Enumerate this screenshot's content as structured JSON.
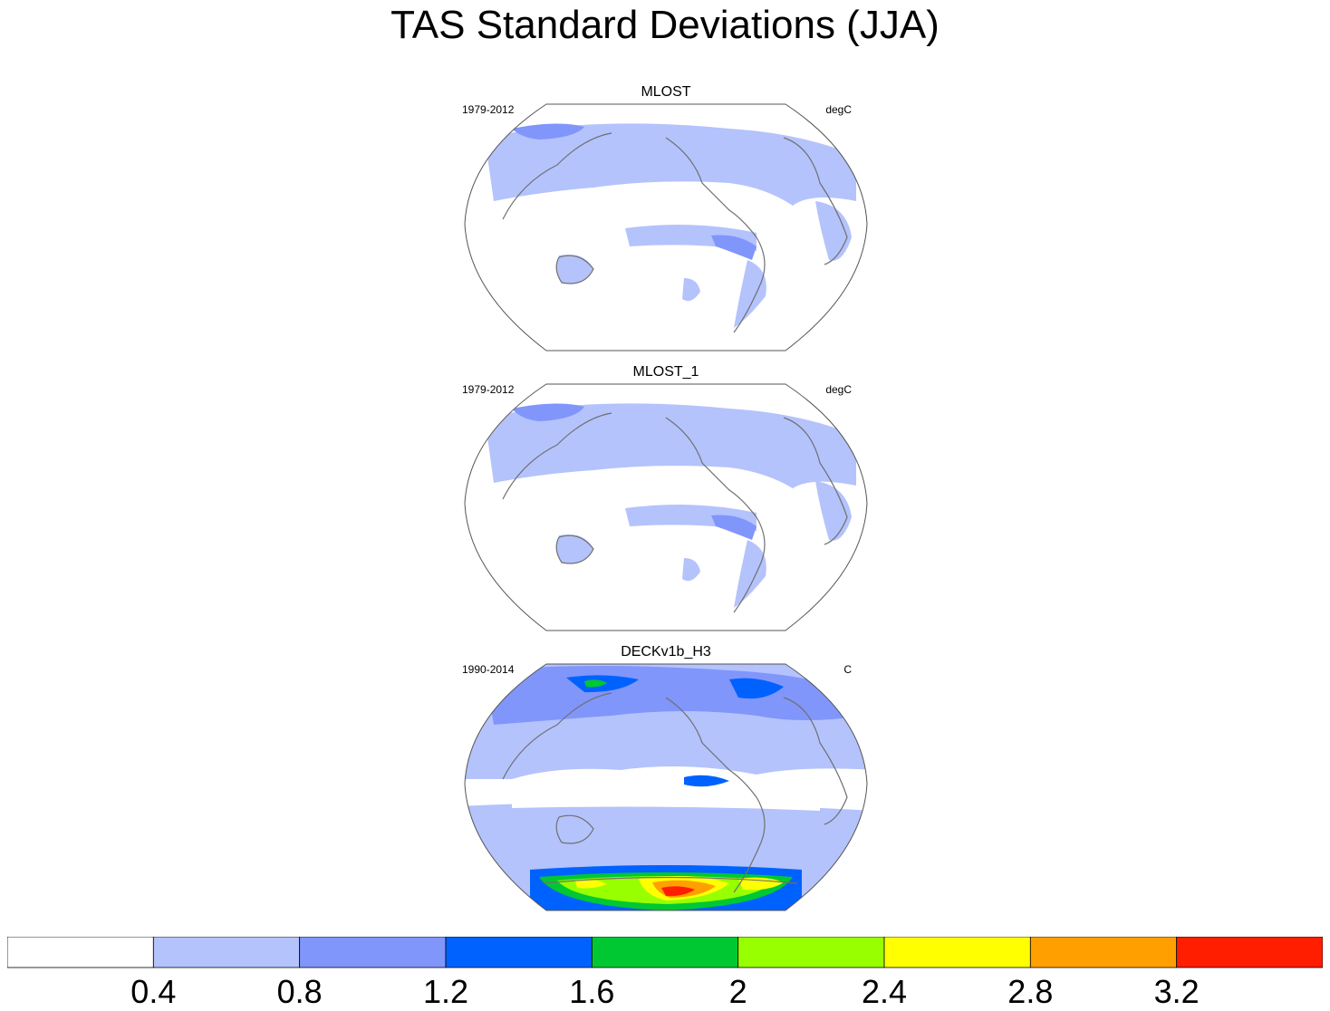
{
  "title": "TAS Standard Deviations (JJA)",
  "chart_data": {
    "type": "heatmap",
    "title": "TAS Standard Deviations (JJA)",
    "projection": "Robinson (Pacific-centered)",
    "panels": [
      {
        "name": "MLOST",
        "period": "1979-2012",
        "units": "degC"
      },
      {
        "name": "MLOST_1",
        "period": "1979-2012",
        "units": "degC"
      },
      {
        "name": "DECKv1b_H3",
        "period": "1990-2014",
        "units": "C"
      }
    ],
    "colorbar": {
      "levels": [
        0.4,
        0.8,
        1.2,
        1.6,
        2,
        2.4,
        2.8,
        3.2
      ],
      "tick_labels": [
        "0.4",
        "0.8",
        "1.2",
        "1.6",
        "2",
        "2.4",
        "2.8",
        "3.2"
      ],
      "colors": [
        "#ffffff",
        "#b4c3fc",
        "#8096fb",
        "#0062fe",
        "#00c832",
        "#98ff00",
        "#ffff00",
        "#ffa000",
        "#ff1e00"
      ]
    }
  }
}
